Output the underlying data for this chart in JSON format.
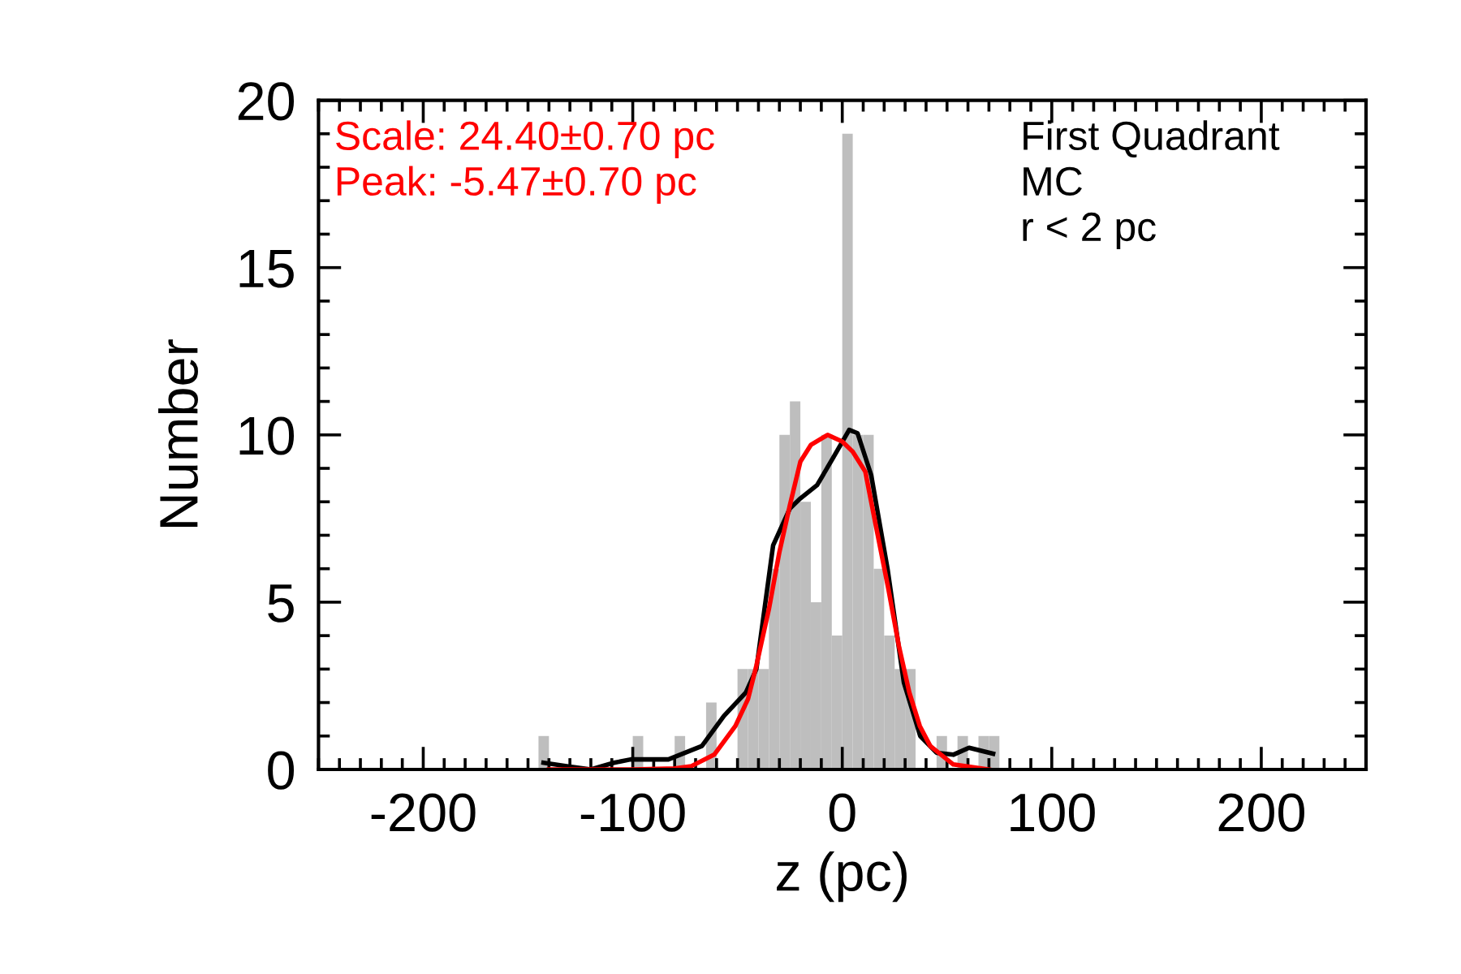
{
  "chart_data": {
    "type": "histogram",
    "xlabel": "z (pc)",
    "ylabel": "Number",
    "bins": [
      -145,
      -140,
      -135,
      -130,
      -125,
      -120,
      -115,
      -110,
      -105,
      -100,
      -95,
      -90,
      -85,
      -80,
      -75,
      -70,
      -65,
      -60,
      -55,
      -50,
      -45,
      -40,
      -35,
      -30,
      -25,
      -20,
      -15,
      -10,
      -5,
      0,
      5,
      10,
      15,
      20,
      25,
      30,
      35,
      40,
      45,
      50,
      55,
      60,
      65,
      70,
      75
    ],
    "values": [
      1,
      0,
      0,
      0,
      0,
      0,
      0,
      0,
      0,
      1,
      0,
      0,
      0,
      1,
      0,
      0,
      2,
      0,
      0,
      3,
      3,
      3,
      6,
      10,
      11,
      8,
      5,
      10,
      4,
      19,
      10,
      10,
      6,
      4,
      3,
      3,
      0,
      0,
      1,
      0,
      1,
      0,
      1,
      1
    ],
    "color": "#bebebe",
    "series": [
      {
        "type": "line",
        "color": "#000000",
        "x": [
          -142.6,
          -131.5,
          -120,
          -109,
          -101,
          -83,
          -75,
          -67,
          -56.5,
          -46,
          -41,
          -33,
          -25,
          -20,
          -12,
          -4.5,
          3.3,
          7.3,
          13.8,
          21.6,
          29.4,
          37.2,
          45,
          53,
          60.5,
          72
        ],
        "values": [
          0.2,
          0.1,
          0,
          0.2,
          0.3,
          0.3,
          0.5,
          0.7,
          1.6,
          2.3,
          3.0,
          6.7,
          7.8,
          8.1,
          8.5,
          9.3,
          10.15,
          10.05,
          8.8,
          6.0,
          2.6,
          1.0,
          0.5,
          0.44,
          0.65,
          0.47
        ]
      },
      {
        "type": "line",
        "color": "#ff0000",
        "x": [
          -140,
          -100,
          -80,
          -72,
          -61,
          -51,
          -45,
          -41,
          -35,
          -30,
          -25,
          -20,
          -15,
          -7,
          0,
          5,
          11,
          16,
          22,
          27,
          32,
          37,
          42,
          53,
          70
        ],
        "values": [
          0,
          0,
          0.03,
          0.1,
          0.45,
          1.3,
          2.1,
          3.1,
          4.8,
          6.5,
          7.9,
          9.2,
          9.7,
          10,
          9.8,
          9.5,
          8.9,
          7.3,
          5.4,
          3.7,
          2.3,
          1.3,
          0.7,
          0.15,
          0
        ]
      }
    ],
    "xlim": [
      -250,
      250
    ],
    "xticks": [
      -200,
      -100,
      0,
      100,
      200
    ],
    "ylim": [
      0,
      20
    ],
    "yticks": [
      0,
      5,
      10,
      15,
      20
    ],
    "grid": false,
    "annotations": [
      "Scale: 24.40±0.70 pc",
      "Peak: -5.47±0.70 pc",
      "First Quadrant",
      "MC",
      "r < 2 pc"
    ]
  }
}
